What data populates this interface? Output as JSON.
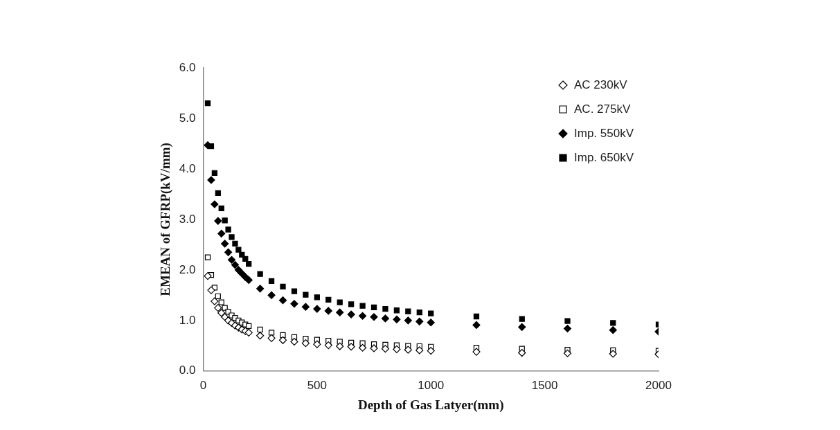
{
  "chart_data": {
    "type": "scatter",
    "x_label": "Depth of Gas Latyer(mm)",
    "y_label": "EMEAN of GFRP(kV/mm)",
    "x": [
      20,
      35,
      50,
      65,
      80,
      95,
      110,
      125,
      140,
      155,
      170,
      185,
      200,
      250,
      300,
      350,
      400,
      450,
      500,
      550,
      600,
      650,
      700,
      750,
      800,
      850,
      900,
      950,
      1000,
      1200,
      1400,
      1600,
      1800,
      2000
    ],
    "series": [
      {
        "name": "AC 230kV",
        "color": "#000000",
        "marker": "diamond_open",
        "values": [
          1.88,
          1.6,
          1.38,
          1.25,
          1.15,
          1.07,
          1.0,
          0.95,
          0.9,
          0.86,
          0.82,
          0.79,
          0.76,
          0.7,
          0.65,
          0.61,
          0.58,
          0.55,
          0.53,
          0.51,
          0.49,
          0.48,
          0.46,
          0.45,
          0.44,
          0.43,
          0.42,
          0.41,
          0.4,
          0.38,
          0.36,
          0.35,
          0.34,
          0.33
        ]
      },
      {
        "name": "AC. 275kV",
        "color": "#000000",
        "marker": "square_open",
        "values": [
          2.25,
          1.9,
          1.65,
          1.48,
          1.36,
          1.25,
          1.17,
          1.1,
          1.05,
          1.0,
          0.96,
          0.92,
          0.89,
          0.82,
          0.76,
          0.71,
          0.67,
          0.64,
          0.62,
          0.6,
          0.58,
          0.56,
          0.55,
          0.53,
          0.52,
          0.51,
          0.5,
          0.49,
          0.48,
          0.46,
          0.44,
          0.42,
          0.41,
          0.4
        ]
      },
      {
        "name": "Imp. 550kV",
        "color": "#000000",
        "marker": "diamond",
        "values": [
          4.47,
          3.78,
          3.3,
          2.97,
          2.72,
          2.52,
          2.35,
          2.2,
          2.1,
          2.0,
          1.93,
          1.86,
          1.8,
          1.63,
          1.5,
          1.4,
          1.33,
          1.27,
          1.23,
          1.19,
          1.16,
          1.12,
          1.09,
          1.07,
          1.04,
          1.02,
          1.0,
          0.98,
          0.96,
          0.91,
          0.87,
          0.84,
          0.81,
          0.78
        ]
      },
      {
        "name": "Imp. 650kV",
        "color": "#000000",
        "marker": "square",
        "values": [
          5.3,
          4.45,
          3.92,
          3.52,
          3.22,
          2.98,
          2.8,
          2.65,
          2.52,
          2.4,
          2.3,
          2.22,
          2.12,
          1.92,
          1.78,
          1.67,
          1.58,
          1.51,
          1.46,
          1.41,
          1.36,
          1.32,
          1.29,
          1.26,
          1.23,
          1.2,
          1.18,
          1.16,
          1.14,
          1.08,
          1.03,
          0.99,
          0.95,
          0.92
        ]
      }
    ],
    "xlim": [
      0,
      2000
    ],
    "xticks": [
      0,
      500,
      1000,
      1500,
      2000
    ],
    "ylim": [
      0,
      6
    ],
    "yticks": [
      {
        "value": 0,
        "label": "0.0"
      },
      {
        "value": 1,
        "label": "1.0"
      },
      {
        "value": 2,
        "label": "2.0"
      },
      {
        "value": 3,
        "label": "3.0"
      },
      {
        "value": 4,
        "label": "4.0"
      },
      {
        "value": 5,
        "label": "5.0"
      },
      {
        "value": 6,
        "label": "6.0"
      }
    ],
    "grid": false,
    "legend": "upper right"
  }
}
